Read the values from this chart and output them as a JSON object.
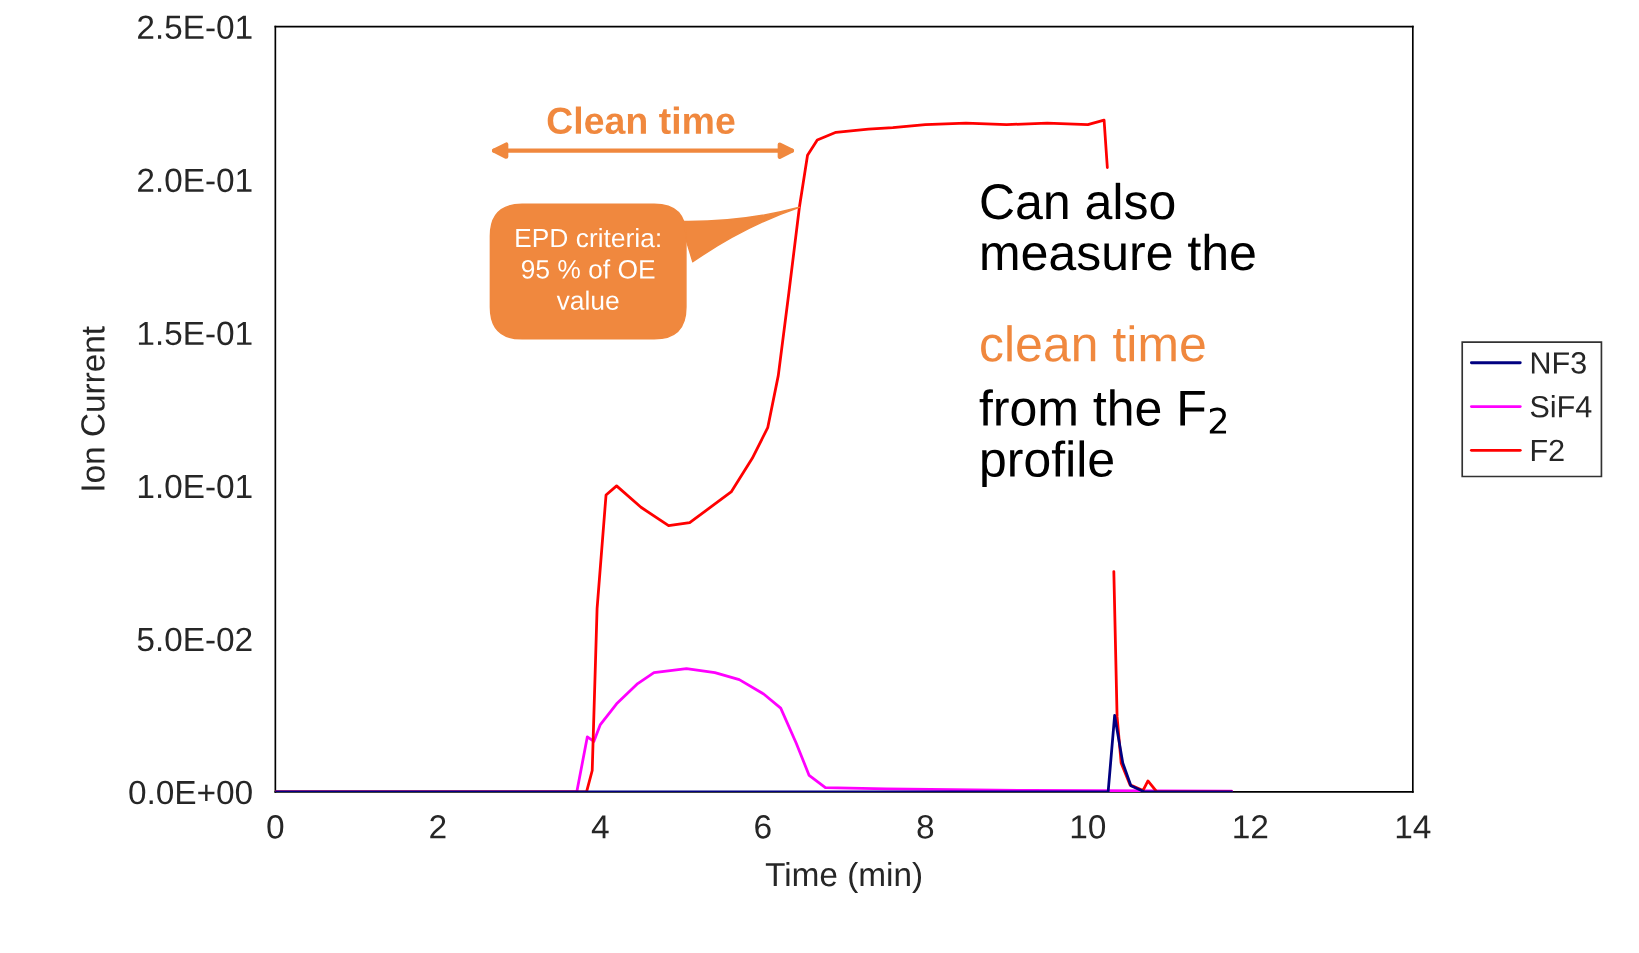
{
  "chart_data": {
    "type": "line",
    "xlabel": "Time (min)",
    "ylabel": "Ion Current",
    "xlim": [
      0,
      14
    ],
    "xticks": [
      0,
      2,
      4,
      6,
      8,
      10,
      12,
      14
    ],
    "ylim": [
      0,
      0.25
    ],
    "yticks": [
      {
        "value": 0,
        "label": "0.0E+00"
      },
      {
        "value": 0.05,
        "label": "5.0E-02"
      },
      {
        "value": 0.1,
        "label": "1.0E-01"
      },
      {
        "value": 0.15,
        "label": "1.5E-01"
      },
      {
        "value": 0.2,
        "label": "2.0E-01"
      },
      {
        "value": 0.25,
        "label": "2.5E-01"
      }
    ],
    "grid": false,
    "legend": "right",
    "series": [
      {
        "name": "NF3",
        "color": "#000080",
        "x": [
          0,
          10.25,
          10.33,
          10.43,
          10.53,
          10.7,
          11.77
        ],
        "values": [
          0,
          0,
          0.025,
          0.0095,
          0.002,
          0,
          0
        ]
      },
      {
        "name": "SiF4",
        "color": "#ff00ff",
        "x": [
          0,
          3.71,
          3.84,
          3.92,
          4.0,
          4.2,
          4.46,
          4.66,
          5.06,
          5.41,
          5.71,
          6.01,
          6.22,
          6.41,
          6.57,
          6.77,
          7.52,
          9.28,
          11.77
        ],
        "values": [
          0,
          0,
          0.018,
          0.0165,
          0.022,
          0.0288,
          0.0354,
          0.039,
          0.0403,
          0.039,
          0.0367,
          0.032,
          0.0274,
          0.016,
          0.0054,
          0.0014,
          0.001,
          0.0005,
          0.0003
        ]
      },
      {
        "name": "F2",
        "color": "#ff0000",
        "x": [
          0,
          3.83,
          3.9,
          3.96,
          4.07,
          4.2,
          4.5,
          4.84,
          5.1,
          5.61,
          5.87,
          6.06,
          6.19,
          6.32,
          6.45,
          6.55,
          6.67,
          6.9,
          7.3,
          7.6,
          8.0,
          8.5,
          9.0,
          9.5,
          10.0,
          10.2,
          10.24,
          10.28,
          10.32,
          10.36,
          10.41,
          10.52,
          10.68,
          10.74,
          10.85,
          11.77
        ],
        "values": [
          0,
          0,
          0.007,
          0.06,
          0.097,
          0.1,
          0.093,
          0.087,
          0.088,
          0.098,
          0.109,
          0.119,
          0.136,
          0.163,
          0.191,
          0.208,
          0.213,
          0.2155,
          0.2165,
          0.217,
          0.218,
          0.2185,
          0.218,
          0.2185,
          0.218,
          0.2195,
          0.204,
          null,
          0.072,
          0.0246,
          0.0095,
          0.0023,
          0.0005,
          0.0036,
          0,
          0
        ]
      }
    ],
    "annotations": [
      "Clean time",
      {
        "text": "EPD criteria:\n95 % of OE\nvalue",
        "x": 6.45,
        "y": 0.191
      },
      "Can also\nmeasure the",
      "clean time",
      "from the F$_{2}$\nprofile"
    ]
  }
}
